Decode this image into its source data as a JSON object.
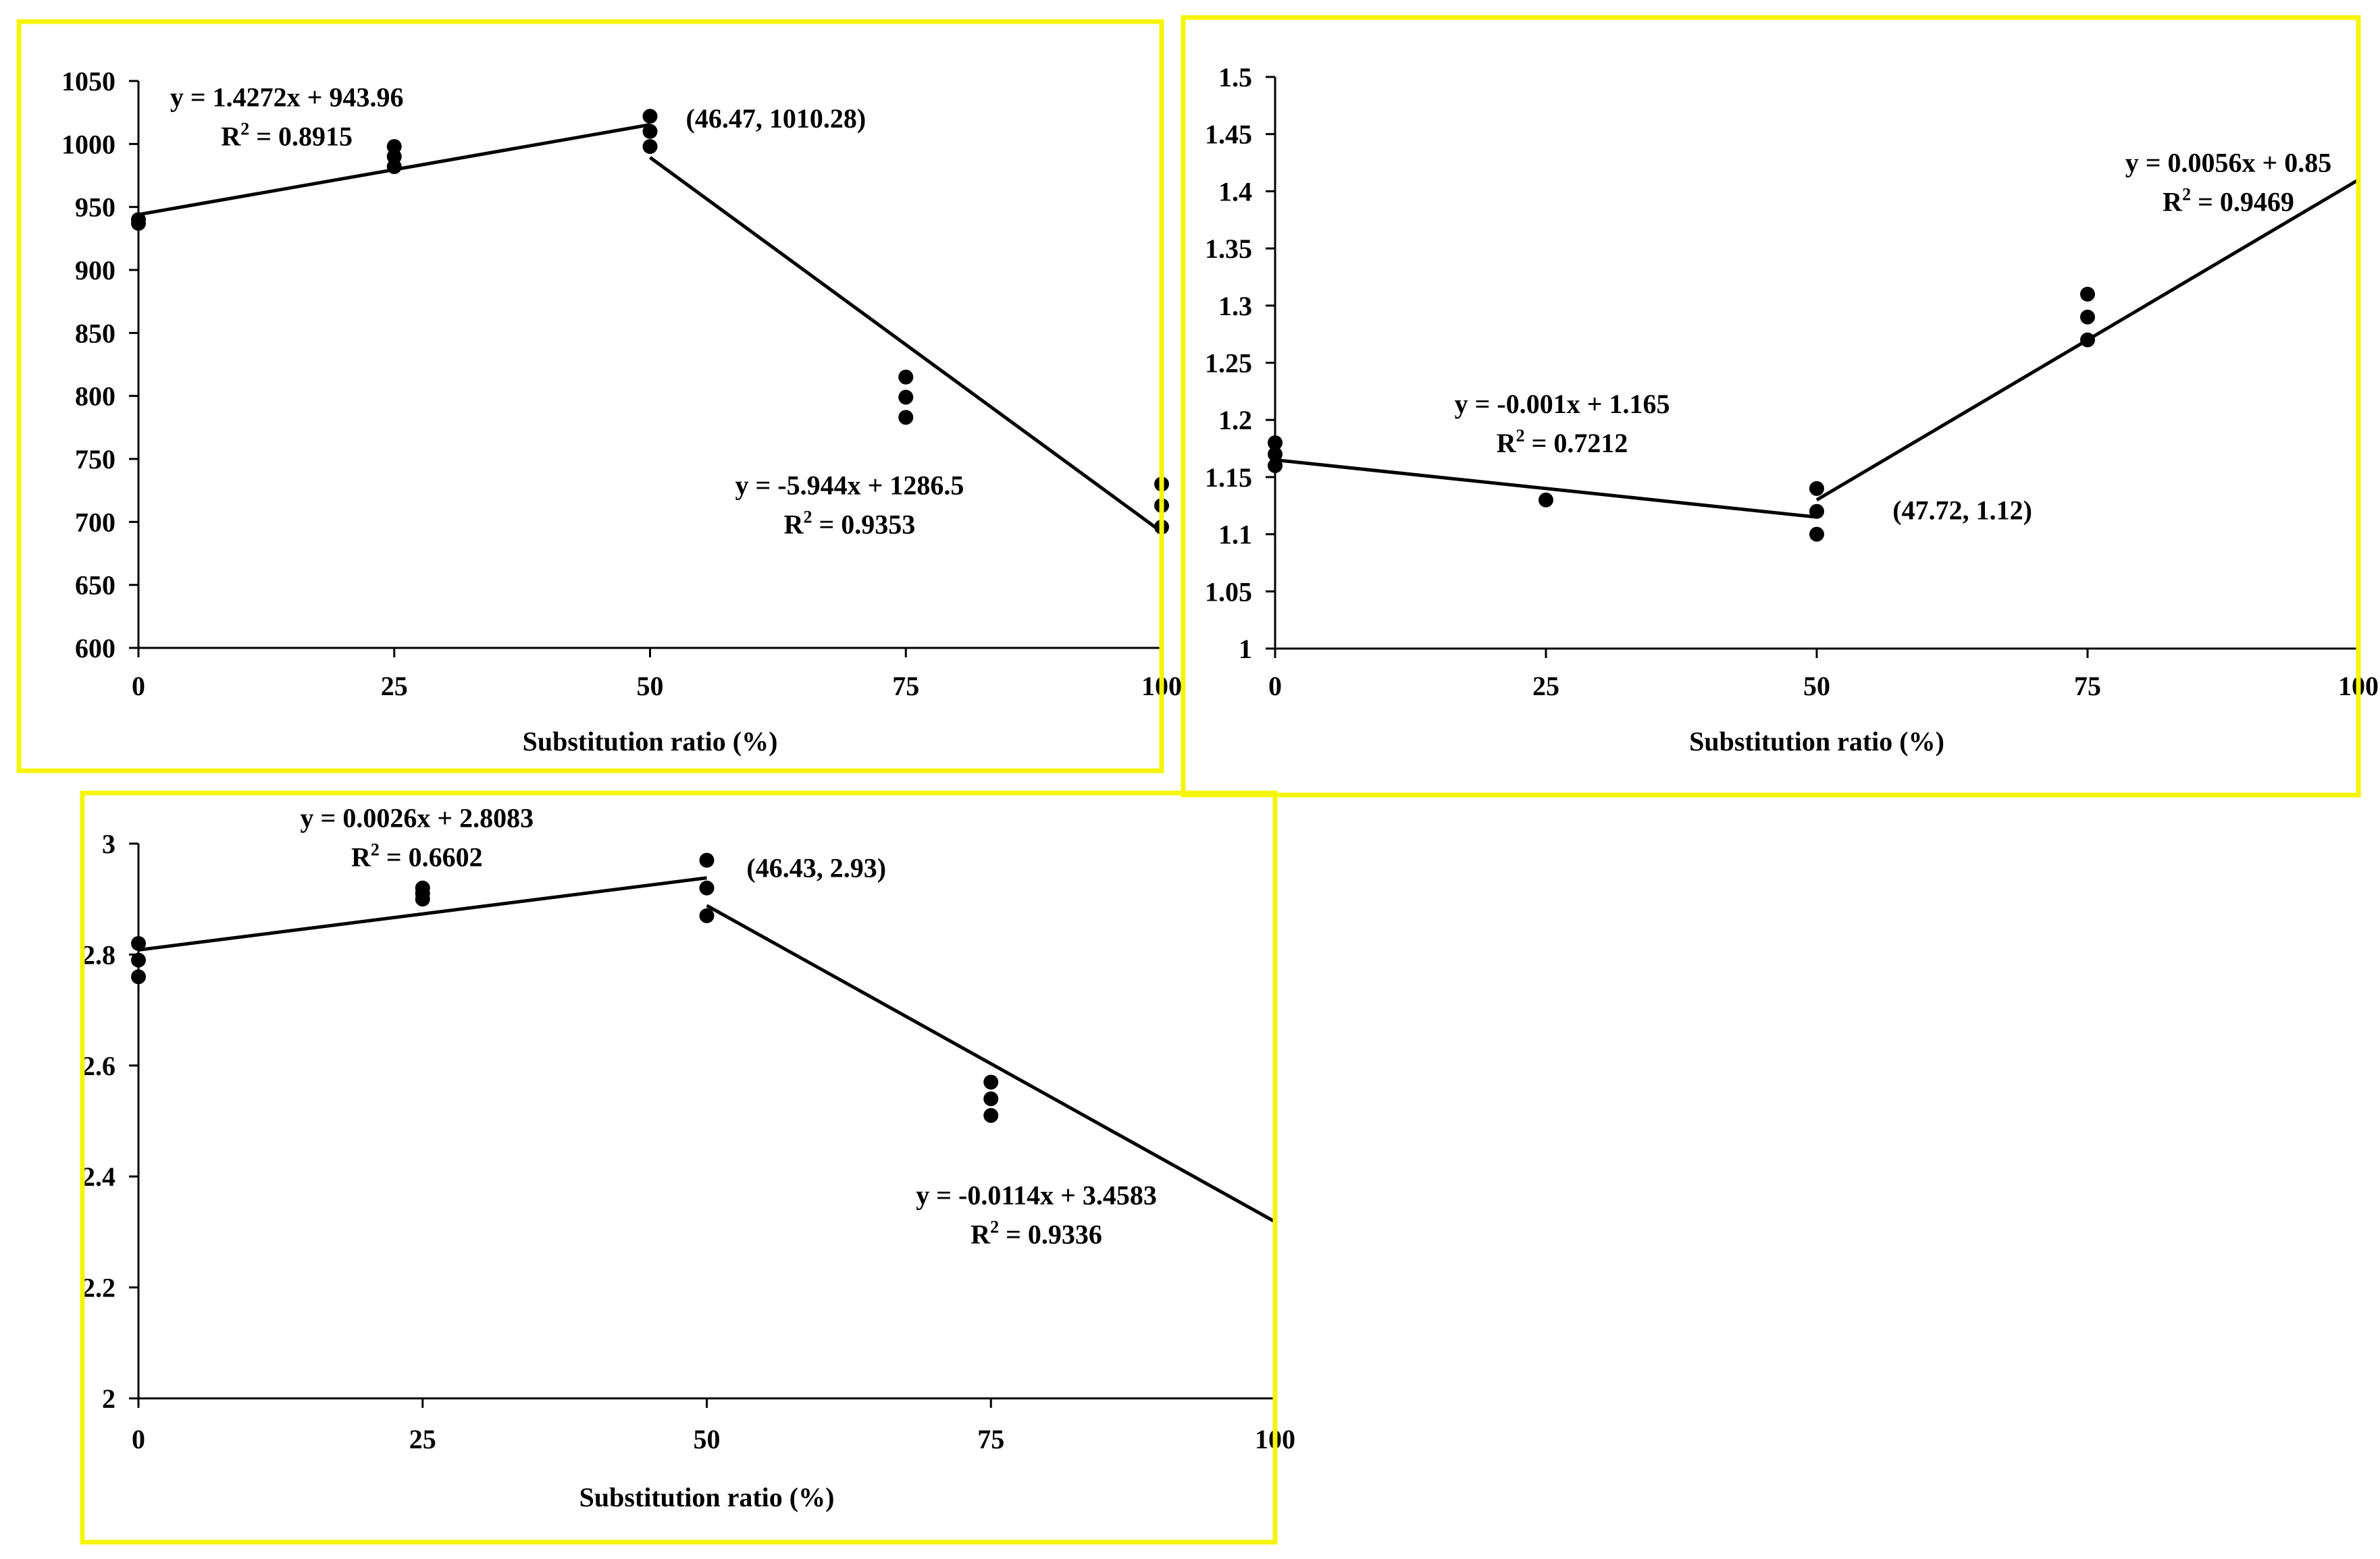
{
  "colors": {
    "frame": "#f5f50a",
    "ink": "#000000",
    "background": "#ffffff"
  },
  "chart_data": [
    {
      "type": "scatter",
      "id": "panel-1",
      "xlabel": "Substitution ratio (%)",
      "ylabel": "",
      "xlim": [
        0,
        100
      ],
      "ylim": [
        600,
        1050
      ],
      "x_ticks": [
        0,
        25,
        50,
        75,
        100
      ],
      "x_tick_labels": [
        "0",
        "25",
        "50",
        "75",
        "100"
      ],
      "y_ticks": [
        600,
        650,
        700,
        750,
        800,
        850,
        900,
        950,
        1000,
        1050
      ],
      "y_tick_labels": [
        "600",
        "650",
        "700",
        "750",
        "800",
        "850",
        "900",
        "950",
        "1000",
        "1050"
      ],
      "points": [
        {
          "x": 0,
          "y": 940
        },
        {
          "x": 0,
          "y": 937
        },
        {
          "x": 25,
          "y": 998
        },
        {
          "x": 25,
          "y": 990
        },
        {
          "x": 25,
          "y": 982
        },
        {
          "x": 50,
          "y": 1022
        },
        {
          "x": 50,
          "y": 1010
        },
        {
          "x": 50,
          "y": 998
        },
        {
          "x": 75,
          "y": 815
        },
        {
          "x": 75,
          "y": 799
        },
        {
          "x": 75,
          "y": 783
        },
        {
          "x": 100,
          "y": 730
        },
        {
          "x": 100,
          "y": 713
        },
        {
          "x": 100,
          "y": 696
        }
      ],
      "fit_lines": [
        {
          "slope": 1.4272,
          "intercept": 943.96,
          "x_range": [
            0,
            50
          ]
        },
        {
          "slope": -5.944,
          "intercept": 1286.5,
          "x_range": [
            50,
            100
          ]
        }
      ],
      "annotations": [
        {
          "line1": "y = 1.4272x + 943.96",
          "line2": "R² = 0.8915",
          "x": 14.5,
          "y": 1030,
          "align": "middle"
        },
        {
          "line1": "y = -5.944x + 1286.5",
          "line2": "R² = 0.9353",
          "x": 69.5,
          "y": 722,
          "align": "middle"
        },
        {
          "text": "(46.47, 1010.28)",
          "x": 53.5,
          "y": 1013,
          "align": "start"
        }
      ]
    },
    {
      "type": "scatter",
      "id": "panel-2",
      "xlabel": "Substitution ratio (%)",
      "ylabel": "",
      "xlim": [
        0,
        100
      ],
      "ylim": [
        1,
        1.5
      ],
      "x_ticks": [
        0,
        25,
        50,
        75,
        100
      ],
      "x_tick_labels": [
        "0",
        "25",
        "50",
        "75",
        "100"
      ],
      "y_ticks": [
        1,
        1.05,
        1.1,
        1.15,
        1.2,
        1.25,
        1.3,
        1.35,
        1.4,
        1.45,
        1.5
      ],
      "y_tick_labels": [
        "1",
        "1.05",
        "1.1",
        "1.15",
        "1.2",
        "1.25",
        "1.3",
        "1.35",
        "1.4",
        "1.45",
        "1.5"
      ],
      "points": [
        {
          "x": 0,
          "y": 1.18
        },
        {
          "x": 0,
          "y": 1.17
        },
        {
          "x": 0,
          "y": 1.16
        },
        {
          "x": 25,
          "y": 1.13
        },
        {
          "x": 50,
          "y": 1.14
        },
        {
          "x": 50,
          "y": 1.12
        },
        {
          "x": 50,
          "y": 1.1
        },
        {
          "x": 75,
          "y": 1.31
        },
        {
          "x": 75,
          "y": 1.29
        },
        {
          "x": 75,
          "y": 1.27
        }
      ],
      "fit_lines": [
        {
          "slope": -0.001,
          "intercept": 1.165,
          "x_range": [
            0,
            50
          ]
        },
        {
          "slope": 0.0056,
          "intercept": 0.85,
          "x_range": [
            50,
            100
          ]
        }
      ],
      "annotations": [
        {
          "line1": "y = -0.001x + 1.165",
          "line2": "R² = 0.7212",
          "x": 26.5,
          "y": 1.206,
          "align": "middle"
        },
        {
          "line1": "y = 0.0056x + 0.85",
          "line2": "R² = 0.9469",
          "x": 88,
          "y": 1.417,
          "align": "middle"
        },
        {
          "text": "(47.72, 1.12)",
          "x": 57,
          "y": 1.113,
          "align": "start"
        }
      ]
    },
    {
      "type": "scatter",
      "id": "panel-3",
      "xlabel": "Substitution ratio (%)",
      "ylabel": "",
      "xlim": [
        0,
        100
      ],
      "ylim": [
        2,
        3
      ],
      "x_ticks": [
        0,
        25,
        50,
        75,
        100
      ],
      "x_tick_labels": [
        "0",
        "25",
        "50",
        "75",
        "100"
      ],
      "y_ticks": [
        2,
        2.2,
        2.4,
        2.6,
        2.8,
        3
      ],
      "y_tick_labels": [
        "2",
        "2.2",
        "2.4",
        "2.6",
        "2.8",
        "3"
      ],
      "points": [
        {
          "x": 0,
          "y": 2.82
        },
        {
          "x": 0,
          "y": 2.79
        },
        {
          "x": 0,
          "y": 2.76
        },
        {
          "x": 25,
          "y": 2.92
        },
        {
          "x": 25,
          "y": 2.91
        },
        {
          "x": 25,
          "y": 2.9
        },
        {
          "x": 50,
          "y": 2.97
        },
        {
          "x": 50,
          "y": 2.92
        },
        {
          "x": 50,
          "y": 2.87
        },
        {
          "x": 75,
          "y": 2.57
        },
        {
          "x": 75,
          "y": 2.54
        },
        {
          "x": 75,
          "y": 2.51
        }
      ],
      "fit_lines": [
        {
          "slope": 0.0026,
          "intercept": 2.8083,
          "x_range": [
            0,
            50
          ]
        },
        {
          "slope": -0.0114,
          "intercept": 3.4583,
          "x_range": [
            50,
            100
          ]
        }
      ],
      "annotations": [
        {
          "line1": "y = 0.0026x + 2.8083",
          "line2": "R² = 0.6602",
          "x": 24.5,
          "y": 3.03,
          "align": "middle"
        },
        {
          "line1": "y = -0.0114x + 3.4583",
          "line2": "R² = 0.9336",
          "x": 79,
          "y": 2.35,
          "align": "middle"
        },
        {
          "text": "(46.43, 2.93)",
          "x": 53.5,
          "y": 2.94,
          "align": "start"
        }
      ]
    }
  ]
}
